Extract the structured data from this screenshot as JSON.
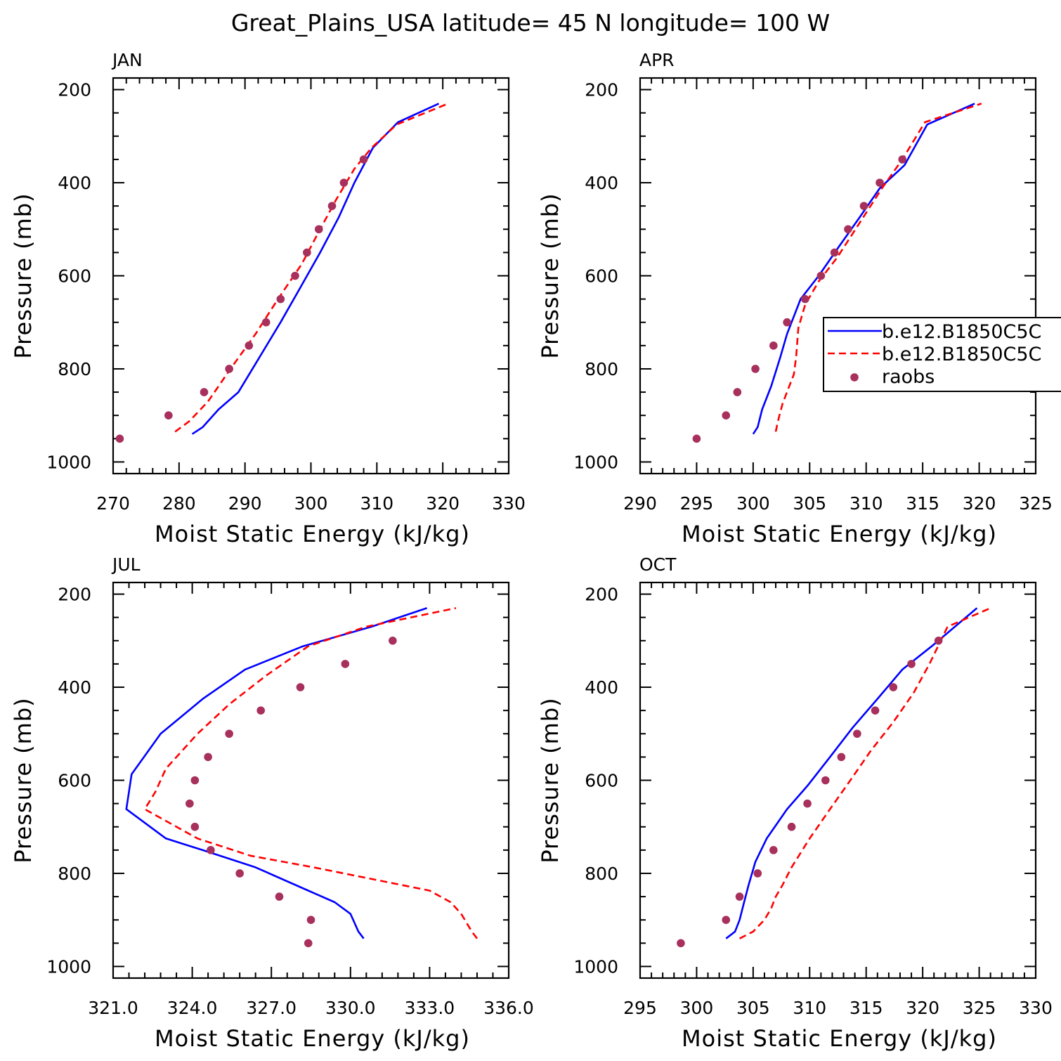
{
  "title": "Great_Plains_USA  latitude= 45 N longitude= 100 W",
  "ylabel": "Pressure (mb)",
  "xlabel": "Moist Static Energy (kJ/kg)",
  "colors": {
    "model_a": "#0000ff",
    "model_b": "#ff0000",
    "raobs": "#a8305c"
  },
  "legend": {
    "placement": "APR panel, right side, clipped",
    "entries": [
      {
        "label": "b.e12.B1850C5C",
        "style": "solid",
        "color": "#0000ff"
      },
      {
        "label": "b.e12.B1850C5C",
        "style": "dashed",
        "color": "#ff0000"
      },
      {
        "label": "raobs",
        "style": "marker",
        "color": "#a8305c"
      }
    ]
  },
  "chart_data": [
    {
      "type": "line",
      "panel": "JAN",
      "ylim": [
        1000,
        200
      ],
      "yticks": [
        "200",
        "400",
        "600",
        "800",
        "1000"
      ],
      "xlim": [
        270,
        330
      ],
      "xticks": [
        "270",
        "280",
        "290",
        "300",
        "310",
        "320",
        "330"
      ],
      "series": [
        {
          "name": "b.e12.B1850C5C",
          "style": "solid",
          "x": [
            282.0,
            283.6,
            286.0,
            289.0,
            292.2,
            295.4,
            298.4,
            301.4,
            304.2,
            306.6,
            309.4,
            313.2,
            319.4
          ],
          "y": [
            940,
            925,
            887,
            850,
            775,
            700,
            625,
            550,
            475,
            400,
            325,
            270,
            230
          ]
        },
        {
          "name": "b.e12.B1850C5C",
          "style": "dashed",
          "x": [
            279.4,
            281.6,
            284.4,
            287.8,
            291.6,
            295.0,
            298.6,
            301.4,
            303.8,
            306.6,
            309.2,
            313.0,
            320.8
          ],
          "y": [
            935,
            912,
            870,
            800,
            725,
            650,
            575,
            500,
            437,
            370,
            325,
            275,
            230
          ]
        },
        {
          "name": "raobs",
          "style": "marker",
          "x": [
            271.0,
            278.4,
            283.8,
            287.6,
            290.6,
            293.2,
            295.4,
            297.6,
            299.4,
            301.2,
            303.2,
            305.0,
            308.0
          ],
          "y": [
            950,
            900,
            850,
            800,
            750,
            700,
            650,
            600,
            550,
            500,
            450,
            400,
            350
          ]
        }
      ]
    },
    {
      "type": "line",
      "panel": "APR",
      "ylim": [
        1000,
        200
      ],
      "yticks": [
        "200",
        "400",
        "600",
        "800",
        "1000"
      ],
      "xlim": [
        290,
        325
      ],
      "xticks": [
        "290",
        "295",
        "300",
        "305",
        "310",
        "315",
        "320",
        "325"
      ],
      "series": [
        {
          "name": "b.e12.B1850C5C",
          "style": "solid",
          "x": [
            300.0,
            300.4,
            300.8,
            301.6,
            302.4,
            303.0,
            304.2,
            305.8,
            307.6,
            309.4,
            311.2,
            313.4,
            315.4,
            319.6
          ],
          "y": [
            940,
            925,
            887,
            837,
            775,
            725,
            650,
            600,
            537,
            475,
            412,
            362,
            275,
            230
          ]
        },
        {
          "name": "b.e12.B1850C5C",
          "style": "dashed",
          "x": [
            302.0,
            302.2,
            302.6,
            303.2,
            303.6,
            303.8,
            304.0,
            304.6,
            305.8,
            307.4,
            309.4,
            311.4,
            313.2,
            315.2,
            320.2
          ],
          "y": [
            935,
            912,
            875,
            837,
            812,
            775,
            712,
            662,
            612,
            562,
            487,
            412,
            350,
            270,
            230
          ]
        },
        {
          "name": "raobs",
          "style": "marker",
          "x": [
            295.0,
            297.6,
            298.6,
            300.2,
            301.8,
            303.0,
            304.6,
            306.0,
            307.2,
            308.4,
            309.8,
            311.2,
            313.2
          ],
          "y": [
            950,
            900,
            850,
            800,
            750,
            700,
            650,
            600,
            550,
            500,
            450,
            400,
            350
          ]
        }
      ]
    },
    {
      "type": "line",
      "panel": "JUL",
      "ylim": [
        1000,
        200
      ],
      "yticks": [
        "200",
        "400",
        "600",
        "800",
        "1000"
      ],
      "xlim": [
        321.0,
        336.0
      ],
      "xticks": [
        "321.0",
        "324.0",
        "327.0",
        "330.0",
        "333.0",
        "336.0"
      ],
      "series": [
        {
          "name": "b.e12.B1850C5C",
          "style": "solid",
          "x": [
            330.5,
            330.3,
            330.0,
            329.4,
            328.4,
            326.4,
            324.4,
            323.0,
            321.5,
            321.7,
            322.8,
            324.4,
            326.0,
            328.2,
            330.8,
            332.9
          ],
          "y": [
            940,
            925,
            887,
            862,
            837,
            787,
            750,
            725,
            662,
            587,
            500,
            425,
            362,
            312,
            270,
            230
          ]
        },
        {
          "name": "b.e12.B1850C5C",
          "style": "dashed",
          "x": [
            334.8,
            334.6,
            334.2,
            333.8,
            333.0,
            330.8,
            328.6,
            326.2,
            324.2,
            322.2,
            322.6,
            323.0,
            324.2,
            325.4,
            326.8,
            328.4,
            330.6,
            334.0
          ],
          "y": [
            940,
            925,
            887,
            862,
            837,
            812,
            787,
            762,
            725,
            662,
            625,
            575,
            500,
            437,
            375,
            312,
            270,
            230
          ]
        },
        {
          "name": "raobs",
          "style": "marker",
          "x": [
            328.4,
            328.5,
            327.3,
            325.8,
            324.7,
            324.1,
            323.9,
            324.1,
            324.6,
            325.4,
            326.6,
            328.1,
            329.8,
            331.6
          ],
          "y": [
            950,
            900,
            850,
            800,
            750,
            700,
            650,
            600,
            550,
            500,
            450,
            400,
            350,
            300
          ]
        }
      ]
    },
    {
      "type": "line",
      "panel": "OCT",
      "ylim": [
        1000,
        200
      ],
      "yticks": [
        "200",
        "400",
        "600",
        "800",
        "1000"
      ],
      "xlim": [
        295,
        330
      ],
      "xticks": [
        "295",
        "300",
        "305",
        "310",
        "315",
        "320",
        "325",
        "330"
      ],
      "series": [
        {
          "name": "b.e12.B1850C5C",
          "style": "solid",
          "x": [
            302.6,
            303.4,
            303.8,
            304.2,
            304.6,
            305.2,
            306.2,
            308.0,
            309.8,
            311.8,
            313.8,
            316.0,
            318.2,
            320.8,
            324.8
          ],
          "y": [
            940,
            925,
            900,
            862,
            825,
            775,
            725,
            662,
            612,
            550,
            487,
            425,
            362,
            312,
            230
          ]
        },
        {
          "name": "b.e12.B1850C5C",
          "style": "dashed",
          "x": [
            303.8,
            305.0,
            306.0,
            306.6,
            307.0,
            307.6,
            308.4,
            310.0,
            311.8,
            313.6,
            315.4,
            317.4,
            319.2,
            320.6,
            322.2,
            326.0
          ],
          "y": [
            940,
            925,
            900,
            875,
            850,
            825,
            787,
            725,
            662,
            600,
            537,
            475,
            412,
            350,
            270,
            230
          ]
        },
        {
          "name": "raobs",
          "style": "marker",
          "x": [
            298.6,
            302.6,
            303.8,
            305.4,
            306.8,
            308.4,
            309.8,
            311.4,
            312.8,
            314.2,
            315.8,
            317.4,
            319.0,
            321.4
          ],
          "y": [
            950,
            900,
            850,
            800,
            750,
            700,
            650,
            600,
            550,
            500,
            450,
            400,
            350,
            300
          ]
        }
      ]
    }
  ]
}
